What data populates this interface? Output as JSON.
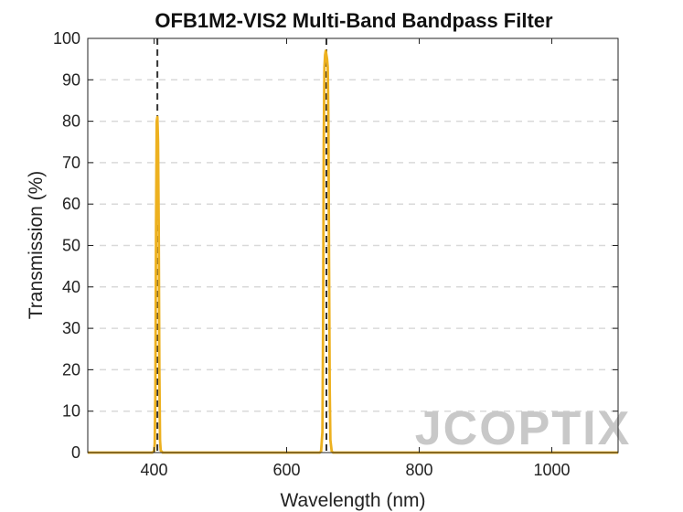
{
  "chart_data": {
    "type": "line",
    "title": "OFB1M2-VIS2 Multi-Band Bandpass Filter",
    "xlabel": "Wavelength (nm)",
    "ylabel": "Transmission (%)",
    "xlim": [
      300,
      1100
    ],
    "ylim": [
      0,
      100
    ],
    "xticks": [
      400,
      600,
      800,
      1000
    ],
    "yticks": [
      0,
      10,
      20,
      30,
      40,
      50,
      60,
      70,
      80,
      90,
      100
    ],
    "grid": "horizontal-dashed",
    "reference_lines": [
      {
        "x": 405,
        "style": "dashed"
      },
      {
        "x": 660,
        "style": "dashed"
      }
    ],
    "series": [
      {
        "color": "#EDB120",
        "x": [
          300,
          397,
          400,
          401,
          402,
          403,
          404,
          405,
          406,
          407,
          408,
          409,
          410,
          413,
          650,
          652,
          654,
          655,
          656,
          657,
          658,
          659,
          660,
          661,
          662,
          663,
          664,
          665,
          666,
          668,
          670,
          1100
        ],
        "y": [
          0,
          0,
          0.3,
          2,
          15,
          55,
          80,
          81,
          75,
          55,
          20,
          3,
          0.5,
          0,
          0,
          0.3,
          5,
          30,
          75,
          93,
          96,
          97,
          96,
          95,
          93,
          80,
          45,
          15,
          3,
          0.3,
          0,
          0
        ]
      }
    ]
  },
  "watermark": {
    "text": "JCOPTIX",
    "color": "#c8c8c8"
  }
}
